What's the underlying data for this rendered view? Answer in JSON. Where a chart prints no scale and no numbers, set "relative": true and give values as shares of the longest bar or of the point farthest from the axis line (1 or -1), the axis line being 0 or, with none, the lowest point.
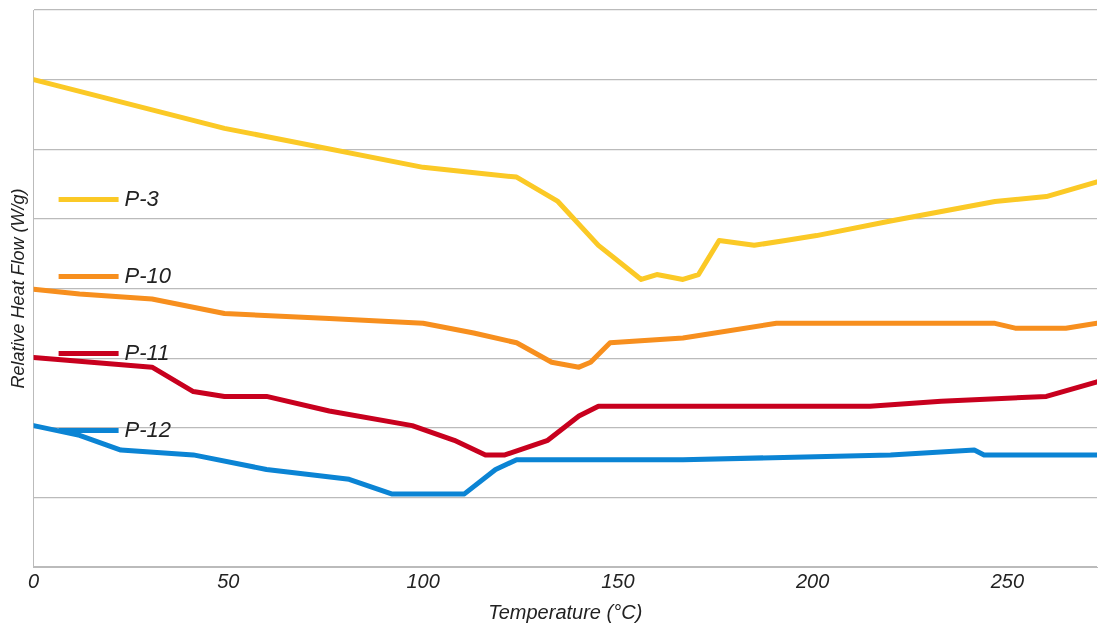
{
  "chart_data": {
    "type": "line",
    "xlabel": "Temperature (°C)",
    "ylabel": "Relative Heat Flow (W/g)",
    "relative": true,
    "xlim": [
      0,
      273
    ],
    "xticks": [
      0,
      50,
      100,
      150,
      200,
      250
    ],
    "grid": "y",
    "legend": "left",
    "marker": "none",
    "line_style": "solid",
    "series": [
      {
        "name": "P-3",
        "color": "#fbc926",
        "x": [
          0,
          49,
          100,
          112,
          124,
          134.6,
          145,
          156,
          160,
          166.7,
          170.7,
          176,
          185,
          193,
          201,
          220,
          233.4,
          246.8,
          260,
          273
        ],
        "values": [
          1.0,
          0.9,
          0.82,
          0.81,
          0.8,
          0.75,
          0.66,
          0.59,
          0.6,
          0.59,
          0.6,
          0.67,
          0.66,
          0.67,
          0.68,
          0.71,
          0.73,
          0.75,
          0.76,
          0.79
        ]
      },
      {
        "name": "P-10",
        "color": "#f78f1e",
        "x": [
          0,
          11.8,
          30.4,
          49,
          75.9,
          100,
          113,
          124,
          133,
          140,
          143,
          148,
          166.7,
          190.7,
          246.8,
          252,
          265,
          273
        ],
        "values": [
          0.57,
          0.56,
          0.55,
          0.52,
          0.51,
          0.5,
          0.48,
          0.46,
          0.42,
          0.41,
          0.42,
          0.46,
          0.47,
          0.5,
          0.5,
          0.49,
          0.49,
          0.5
        ]
      },
      {
        "name": "P-11",
        "color": "#c8001e",
        "x": [
          0,
          30.4,
          41,
          49,
          59.8,
          75.9,
          97.2,
          108,
          116,
          121,
          132,
          140,
          145,
          214.7,
          233,
          260,
          273
        ],
        "values": [
          0.43,
          0.41,
          0.36,
          0.35,
          0.35,
          0.32,
          0.29,
          0.26,
          0.23,
          0.23,
          0.26,
          0.31,
          0.33,
          0.33,
          0.34,
          0.35,
          0.38
        ]
      },
      {
        "name": "P-12",
        "color": "#0b84d4",
        "x": [
          0,
          11.8,
          22.4,
          41,
          59.8,
          81,
          91.9,
          100,
          110.6,
          118.6,
          124,
          134.6,
          166.7,
          220,
          241.5,
          244,
          273
        ],
        "values": [
          0.29,
          0.27,
          0.24,
          0.23,
          0.2,
          0.18,
          0.15,
          0.15,
          0.15,
          0.2,
          0.22,
          0.22,
          0.22,
          0.23,
          0.24,
          0.23,
          0.23
        ]
      }
    ]
  }
}
